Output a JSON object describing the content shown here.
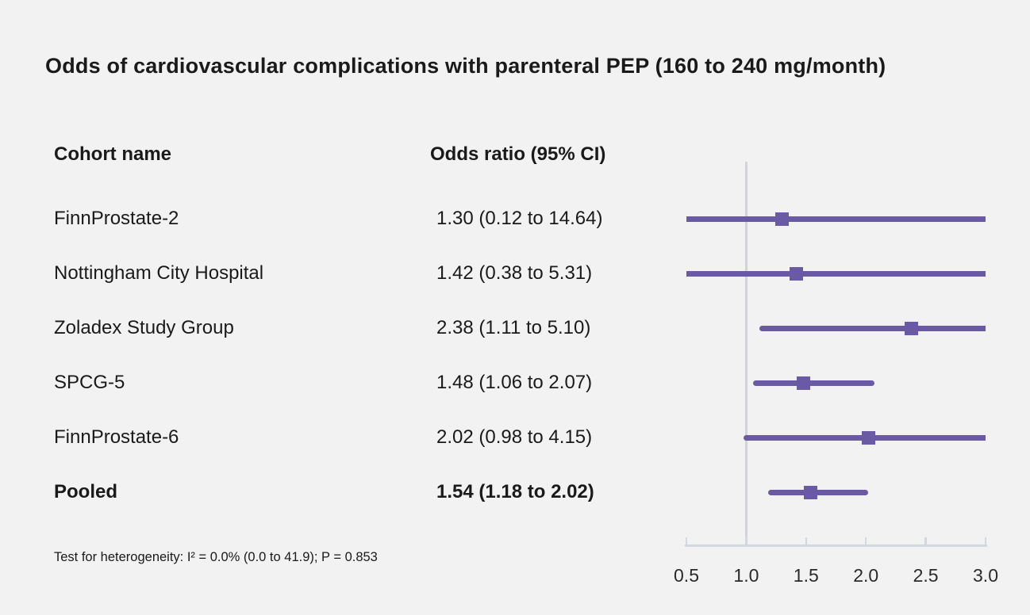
{
  "figure": {
    "title": "Odds of cardiovascular complications with parenteral PEP (160 to 240 mg/month)",
    "column_headers": {
      "cohort": "Cohort name",
      "odds_ratio": "Odds ratio (95% CI)"
    },
    "footnote": "Test for heterogeneity: I² = 0.0% (0.0 to 41.9); P = 0.853"
  },
  "colors": {
    "background": "#f2f2f2",
    "text": "#1a1a1a",
    "marker_purple": "#6a5aa6",
    "axis_gray": "#d3d8e0",
    "reference_line_gray": "#cfd4de"
  },
  "chart_data": {
    "type": "forest",
    "title": "Odds of cardiovascular complications with parenteral PEP (160 to 240 mg/month)",
    "x_axis": {
      "xlim": [
        0.5,
        3.0
      ],
      "ticks": [
        0.5,
        1.0,
        1.5,
        2.0,
        2.5,
        3.0
      ],
      "tick_labels": [
        "0.5",
        "1.0",
        "1.5",
        "2.0",
        "2.5",
        "3.0"
      ],
      "reference_value": 1.0,
      "grid": false
    },
    "rows": [
      {
        "name": "FinnProstate-2",
        "odds_ratio": 1.3,
        "ci_low": 0.12,
        "ci_high": 14.64,
        "label": "1.30 (0.12 to 14.64)",
        "bold": false
      },
      {
        "name": "Nottingham City Hospital",
        "odds_ratio": 1.42,
        "ci_low": 0.38,
        "ci_high": 5.31,
        "label": "1.42 (0.38 to 5.31)",
        "bold": false
      },
      {
        "name": "Zoladex Study Group",
        "odds_ratio": 2.38,
        "ci_low": 1.11,
        "ci_high": 5.1,
        "label": "2.38 (1.11 to 5.10)",
        "bold": false
      },
      {
        "name": "SPCG-5",
        "odds_ratio": 1.48,
        "ci_low": 1.06,
        "ci_high": 2.07,
        "label": "1.48 (1.06 to 2.07)",
        "bold": false
      },
      {
        "name": "FinnProstate-6",
        "odds_ratio": 2.02,
        "ci_low": 0.98,
        "ci_high": 4.15,
        "label": "2.02 (0.98 to 4.15)",
        "bold": false
      },
      {
        "name": "Pooled",
        "odds_ratio": 1.54,
        "ci_low": 1.18,
        "ci_high": 2.02,
        "label": "1.54 (1.18 to 2.02)",
        "bold": true
      }
    ],
    "heterogeneity_note": "Test for heterogeneity: I² = 0.0% (0.0 to 41.9); P = 0.853"
  }
}
